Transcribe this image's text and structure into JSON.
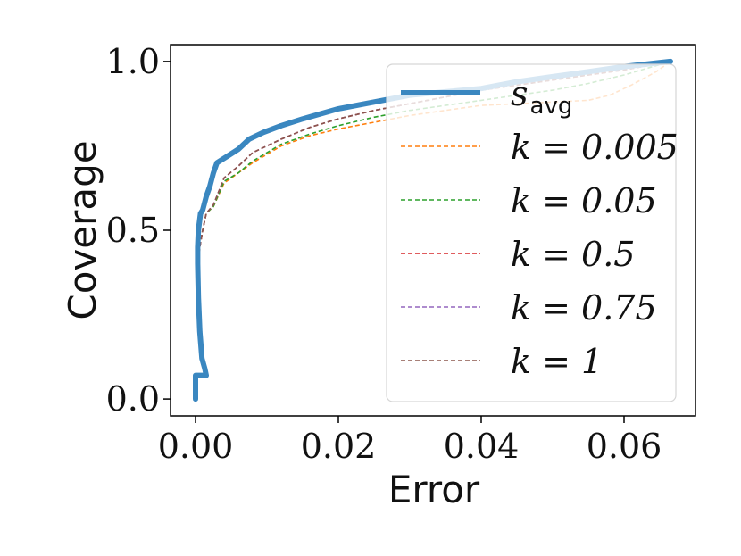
{
  "chart_data": {
    "type": "line",
    "title": "",
    "xlabel": "Error",
    "ylabel": "Coverage",
    "xlim": [
      -0.0035,
      0.07
    ],
    "ylim": [
      -0.05,
      1.05
    ],
    "xticks": [
      0.0,
      0.02,
      0.04,
      0.06
    ],
    "xtick_labels": [
      "0.00",
      "0.02",
      "0.04",
      "0.06"
    ],
    "yticks": [
      0.0,
      0.5,
      1.0
    ],
    "ytick_labels": [
      "0.0",
      "0.5",
      "1.0"
    ],
    "grid": false,
    "legend_position": "top-right",
    "series": [
      {
        "name": "s_avg",
        "label_main": "s",
        "label_sub": "avg",
        "color": "#3a87c0",
        "style": "solid",
        "points": [
          [
            0.0,
            0.0
          ],
          [
            0.0,
            0.07
          ],
          [
            0.001,
            0.07
          ],
          [
            0.0015,
            0.07
          ],
          [
            0.0013,
            0.09
          ],
          [
            0.0009,
            0.12
          ],
          [
            0.0006,
            0.2
          ],
          [
            0.0004,
            0.3
          ],
          [
            0.0003,
            0.4
          ],
          [
            0.0003,
            0.45
          ],
          [
            0.0004,
            0.5
          ],
          [
            0.0007,
            0.55
          ],
          [
            0.001,
            0.56
          ],
          [
            0.0015,
            0.6
          ],
          [
            0.002,
            0.63
          ],
          [
            0.0025,
            0.67
          ],
          [
            0.003,
            0.7
          ],
          [
            0.0045,
            0.72
          ],
          [
            0.006,
            0.74
          ],
          [
            0.0075,
            0.77
          ],
          [
            0.0095,
            0.79
          ],
          [
            0.012,
            0.81
          ],
          [
            0.015,
            0.83
          ],
          [
            0.02,
            0.86
          ],
          [
            0.025,
            0.88
          ],
          [
            0.03,
            0.9
          ],
          [
            0.035,
            0.91
          ],
          [
            0.04,
            0.92
          ],
          [
            0.045,
            0.94
          ],
          [
            0.05,
            0.955
          ],
          [
            0.055,
            0.97
          ],
          [
            0.06,
            0.985
          ],
          [
            0.0665,
            1.0
          ]
        ]
      },
      {
        "name": "k = 0.005",
        "label_main": "k = 0.005",
        "color": "#ff7f0e",
        "style": "dashed",
        "points": [
          [
            0.0,
            0.0
          ],
          [
            0.0,
            0.07
          ],
          [
            0.0015,
            0.07
          ],
          [
            0.0009,
            0.12
          ],
          [
            0.0004,
            0.3
          ],
          [
            0.0003,
            0.4
          ],
          [
            0.0006,
            0.45
          ],
          [
            0.001,
            0.5
          ],
          [
            0.0015,
            0.55
          ],
          [
            0.0025,
            0.57
          ],
          [
            0.004,
            0.64
          ],
          [
            0.006,
            0.67
          ],
          [
            0.008,
            0.7
          ],
          [
            0.012,
            0.75
          ],
          [
            0.016,
            0.78
          ],
          [
            0.02,
            0.8
          ],
          [
            0.025,
            0.82
          ],
          [
            0.03,
            0.84
          ],
          [
            0.035,
            0.855
          ],
          [
            0.04,
            0.87
          ],
          [
            0.045,
            0.875
          ],
          [
            0.05,
            0.88
          ],
          [
            0.055,
            0.885
          ],
          [
            0.058,
            0.9
          ],
          [
            0.061,
            0.93
          ],
          [
            0.0645,
            0.97
          ],
          [
            0.0665,
            1.0
          ]
        ]
      },
      {
        "name": "k = 0.05",
        "label_main": "k = 0.05",
        "color": "#2ca02c",
        "style": "dashed",
        "points": [
          [
            0.0,
            0.0
          ],
          [
            0.0,
            0.07
          ],
          [
            0.0015,
            0.07
          ],
          [
            0.0009,
            0.12
          ],
          [
            0.0004,
            0.3
          ],
          [
            0.0003,
            0.4
          ],
          [
            0.0006,
            0.45
          ],
          [
            0.001,
            0.5
          ],
          [
            0.0015,
            0.55
          ],
          [
            0.0025,
            0.57
          ],
          [
            0.004,
            0.645
          ],
          [
            0.006,
            0.67
          ],
          [
            0.008,
            0.705
          ],
          [
            0.012,
            0.755
          ],
          [
            0.016,
            0.785
          ],
          [
            0.02,
            0.81
          ],
          [
            0.025,
            0.835
          ],
          [
            0.03,
            0.855
          ],
          [
            0.035,
            0.87
          ],
          [
            0.04,
            0.885
          ],
          [
            0.045,
            0.9
          ],
          [
            0.05,
            0.915
          ],
          [
            0.055,
            0.935
          ],
          [
            0.06,
            0.96
          ],
          [
            0.0665,
            1.0
          ]
        ]
      },
      {
        "name": "k = 0.5",
        "label_main": "k = 0.5",
        "color": "#d62728",
        "style": "dashed",
        "points": [
          [
            0.0,
            0.0
          ],
          [
            0.0,
            0.07
          ],
          [
            0.0015,
            0.07
          ],
          [
            0.0009,
            0.12
          ],
          [
            0.0004,
            0.3
          ],
          [
            0.0003,
            0.4
          ],
          [
            0.0006,
            0.45
          ],
          [
            0.001,
            0.5
          ],
          [
            0.0015,
            0.55
          ],
          [
            0.0025,
            0.575
          ],
          [
            0.004,
            0.655
          ],
          [
            0.006,
            0.69
          ],
          [
            0.008,
            0.73
          ],
          [
            0.012,
            0.77
          ],
          [
            0.016,
            0.805
          ],
          [
            0.02,
            0.83
          ],
          [
            0.025,
            0.855
          ],
          [
            0.03,
            0.875
          ],
          [
            0.035,
            0.895
          ],
          [
            0.04,
            0.915
          ],
          [
            0.045,
            0.93
          ],
          [
            0.05,
            0.945
          ],
          [
            0.055,
            0.96
          ],
          [
            0.06,
            0.975
          ],
          [
            0.0665,
            1.0
          ]
        ]
      },
      {
        "name": "k = 0.75",
        "label_main": "k = 0.75",
        "color": "#9467bd",
        "style": "dashed",
        "points": [
          [
            0.0,
            0.0
          ],
          [
            0.0,
            0.07
          ],
          [
            0.0015,
            0.07
          ],
          [
            0.0009,
            0.12
          ],
          [
            0.0004,
            0.3
          ],
          [
            0.0003,
            0.4
          ],
          [
            0.0006,
            0.45
          ],
          [
            0.001,
            0.5
          ],
          [
            0.0015,
            0.55
          ],
          [
            0.0025,
            0.575
          ],
          [
            0.004,
            0.655
          ],
          [
            0.006,
            0.69
          ],
          [
            0.008,
            0.73
          ],
          [
            0.012,
            0.77
          ],
          [
            0.016,
            0.805
          ],
          [
            0.02,
            0.83
          ],
          [
            0.025,
            0.855
          ],
          [
            0.03,
            0.875
          ],
          [
            0.035,
            0.895
          ],
          [
            0.04,
            0.915
          ],
          [
            0.045,
            0.93
          ],
          [
            0.05,
            0.945
          ],
          [
            0.055,
            0.96
          ],
          [
            0.06,
            0.975
          ],
          [
            0.0665,
            1.0
          ]
        ]
      },
      {
        "name": "k = 1",
        "label_main": "k = 1",
        "color": "#8c564b",
        "style": "dashed",
        "points": [
          [
            0.0,
            0.0
          ],
          [
            0.0,
            0.07
          ],
          [
            0.0015,
            0.07
          ],
          [
            0.0009,
            0.12
          ],
          [
            0.0004,
            0.3
          ],
          [
            0.0003,
            0.4
          ],
          [
            0.0006,
            0.45
          ],
          [
            0.001,
            0.5
          ],
          [
            0.0015,
            0.55
          ],
          [
            0.0025,
            0.575
          ],
          [
            0.004,
            0.655
          ],
          [
            0.006,
            0.69
          ],
          [
            0.008,
            0.73
          ],
          [
            0.012,
            0.77
          ],
          [
            0.016,
            0.805
          ],
          [
            0.02,
            0.83
          ],
          [
            0.025,
            0.855
          ],
          [
            0.03,
            0.875
          ],
          [
            0.035,
            0.895
          ],
          [
            0.04,
            0.915
          ],
          [
            0.045,
            0.93
          ],
          [
            0.05,
            0.945
          ],
          [
            0.055,
            0.96
          ],
          [
            0.06,
            0.975
          ],
          [
            0.0665,
            1.0
          ]
        ]
      }
    ]
  }
}
